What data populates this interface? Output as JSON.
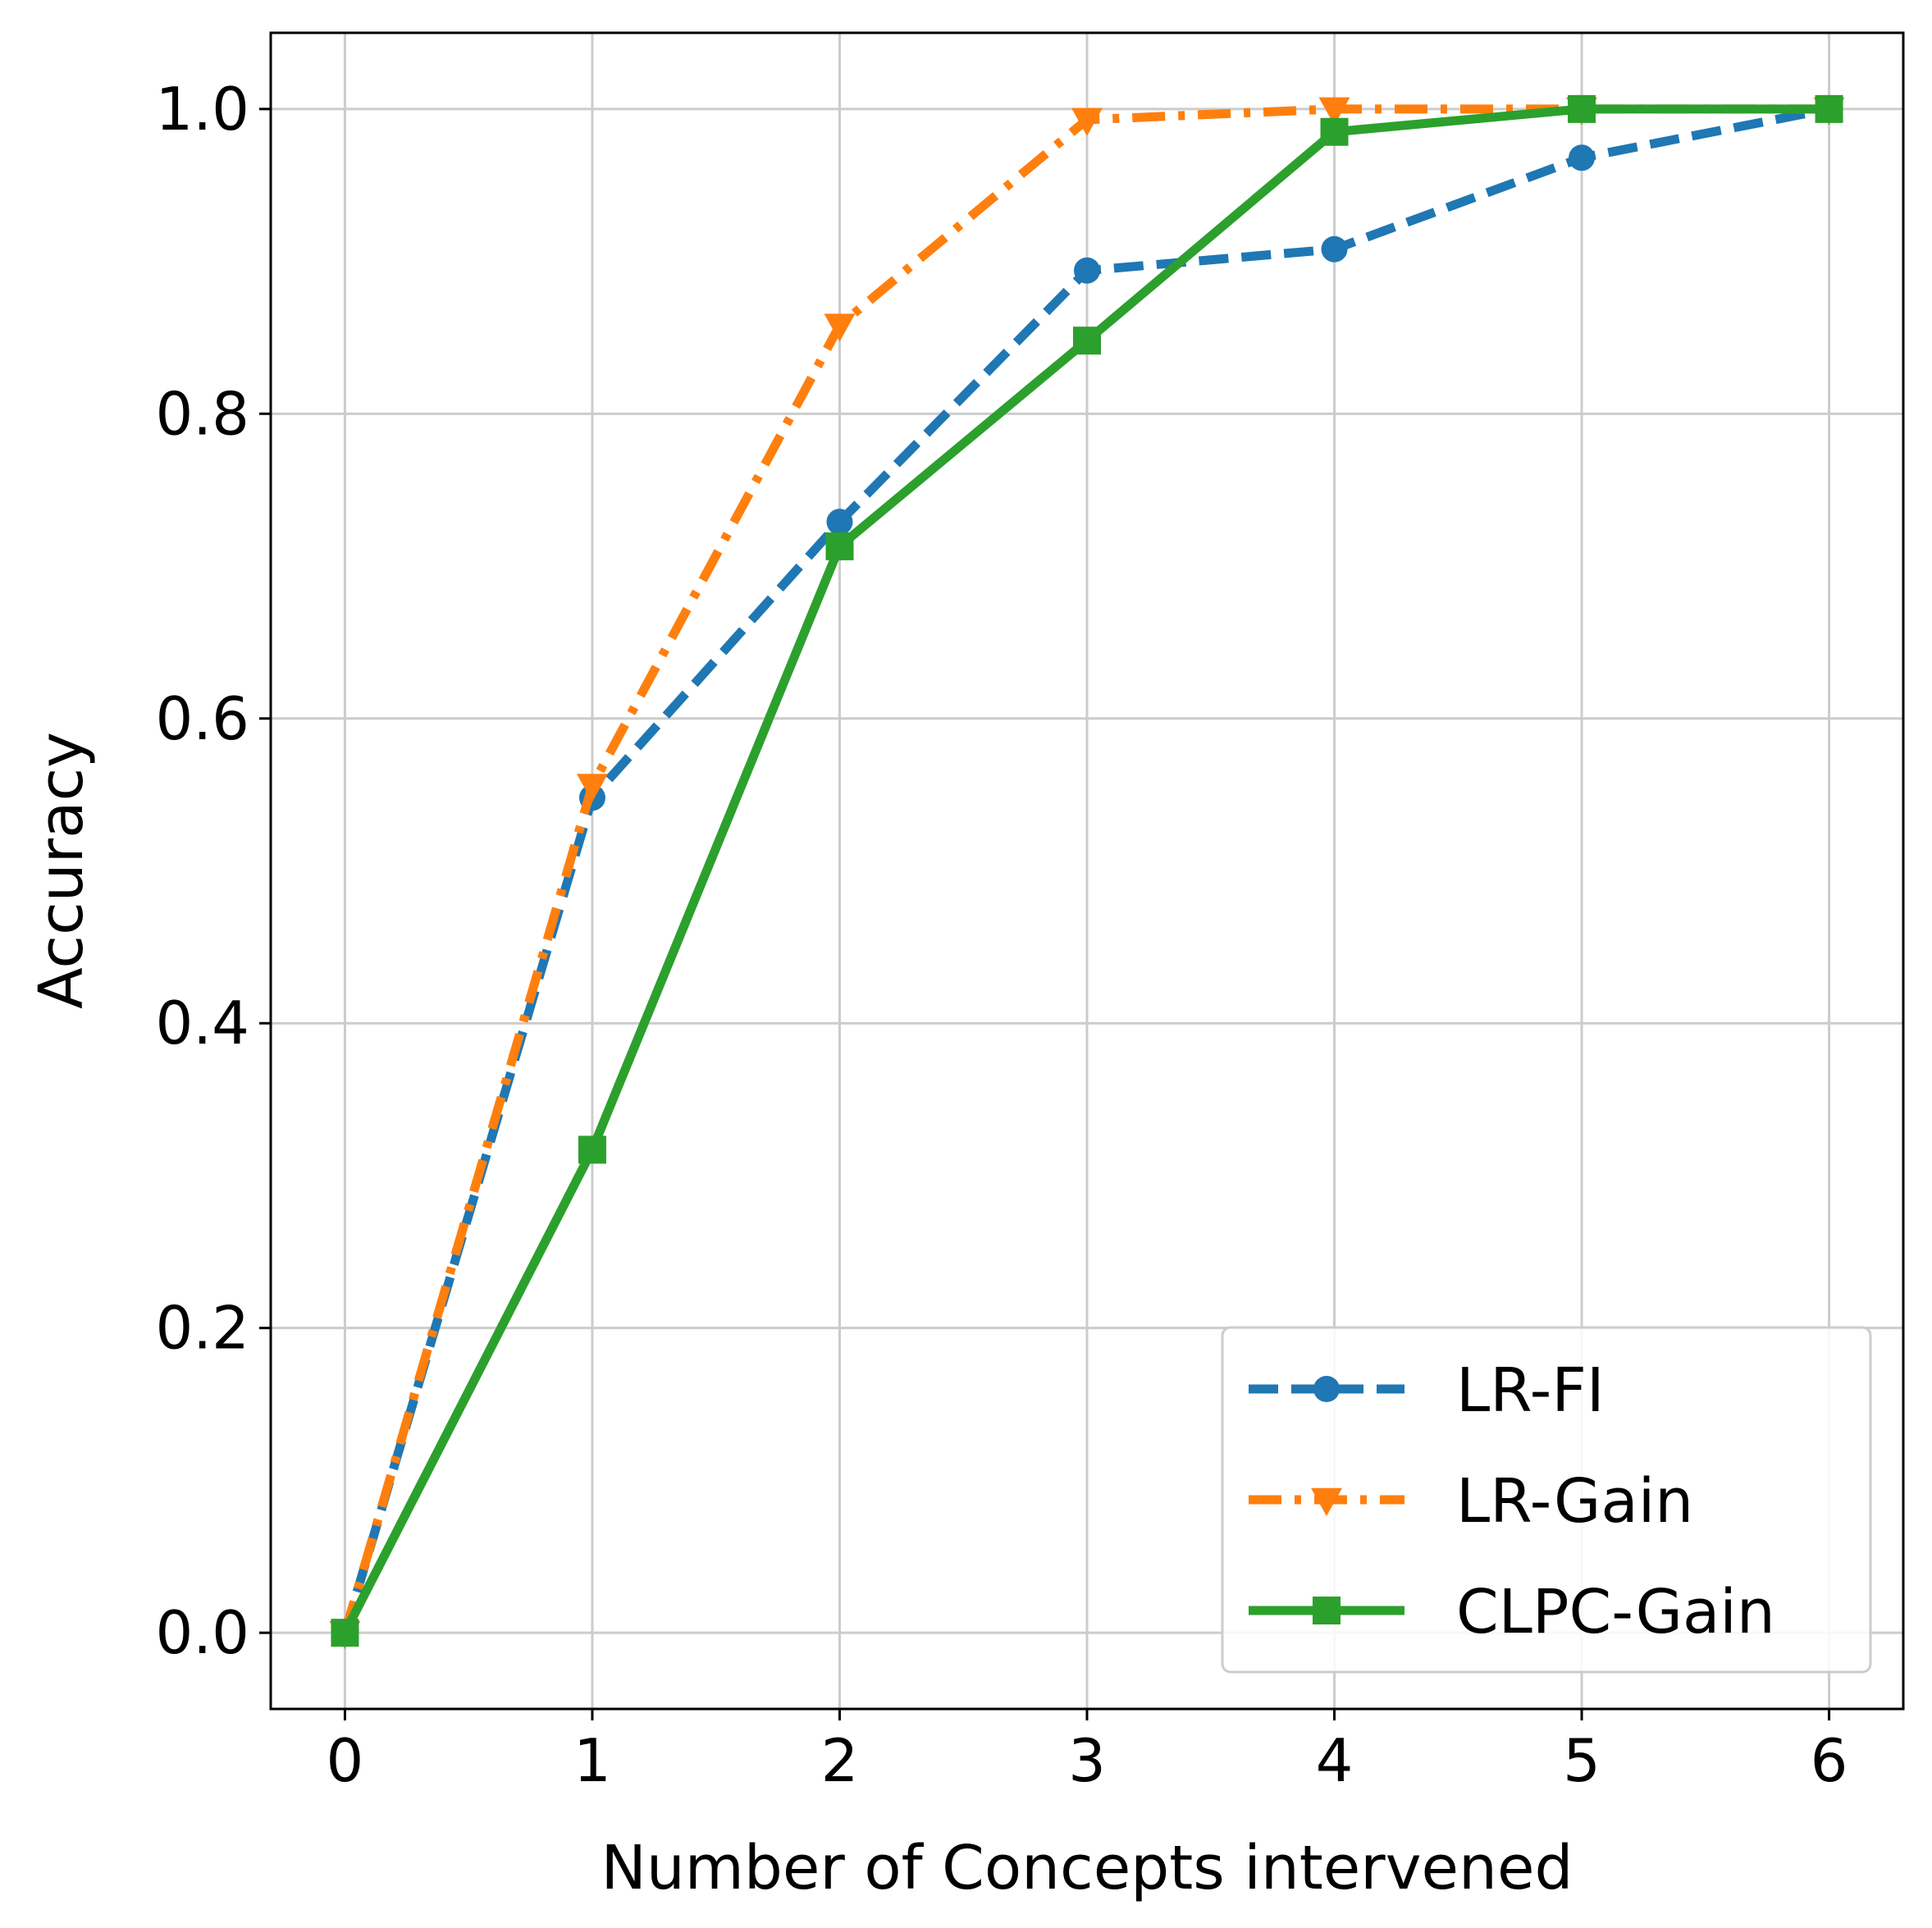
{
  "chart_data": {
    "type": "line",
    "title": "",
    "xlabel": "Number of Concepts intervened",
    "ylabel": "Accuracy",
    "x": [
      0,
      1,
      2,
      3,
      4,
      5,
      6
    ],
    "xlim": [
      -0.3,
      6.3
    ],
    "ylim": [
      -0.05,
      1.05
    ],
    "xticks": [
      "0",
      "1",
      "2",
      "3",
      "4",
      "5",
      "6"
    ],
    "yticks": [
      "0.0",
      "0.2",
      "0.4",
      "0.6",
      "0.8",
      "1.0"
    ],
    "ytick_values": [
      0.0,
      0.2,
      0.4,
      0.6,
      0.8,
      1.0
    ],
    "grid": true,
    "legend_position": "lower-right",
    "series": [
      {
        "name": "LR-FI",
        "color": "#1f77b4",
        "line_style": "dashed",
        "marker": "circle",
        "values": [
          0.0,
          0.548,
          0.729,
          0.894,
          0.908,
          0.968,
          1.0
        ]
      },
      {
        "name": "LR-Gain",
        "color": "#ff7f0e",
        "line_style": "dash-dot",
        "marker": "triangle-down",
        "values": [
          0.0,
          0.556,
          0.858,
          0.993,
          1.0,
          1.0,
          1.0
        ]
      },
      {
        "name": "CLPC-Gain",
        "color": "#2ca02c",
        "line_style": "solid",
        "marker": "square",
        "values": [
          0.0,
          0.317,
          0.713,
          0.848,
          0.985,
          1.0,
          1.0
        ]
      }
    ]
  }
}
